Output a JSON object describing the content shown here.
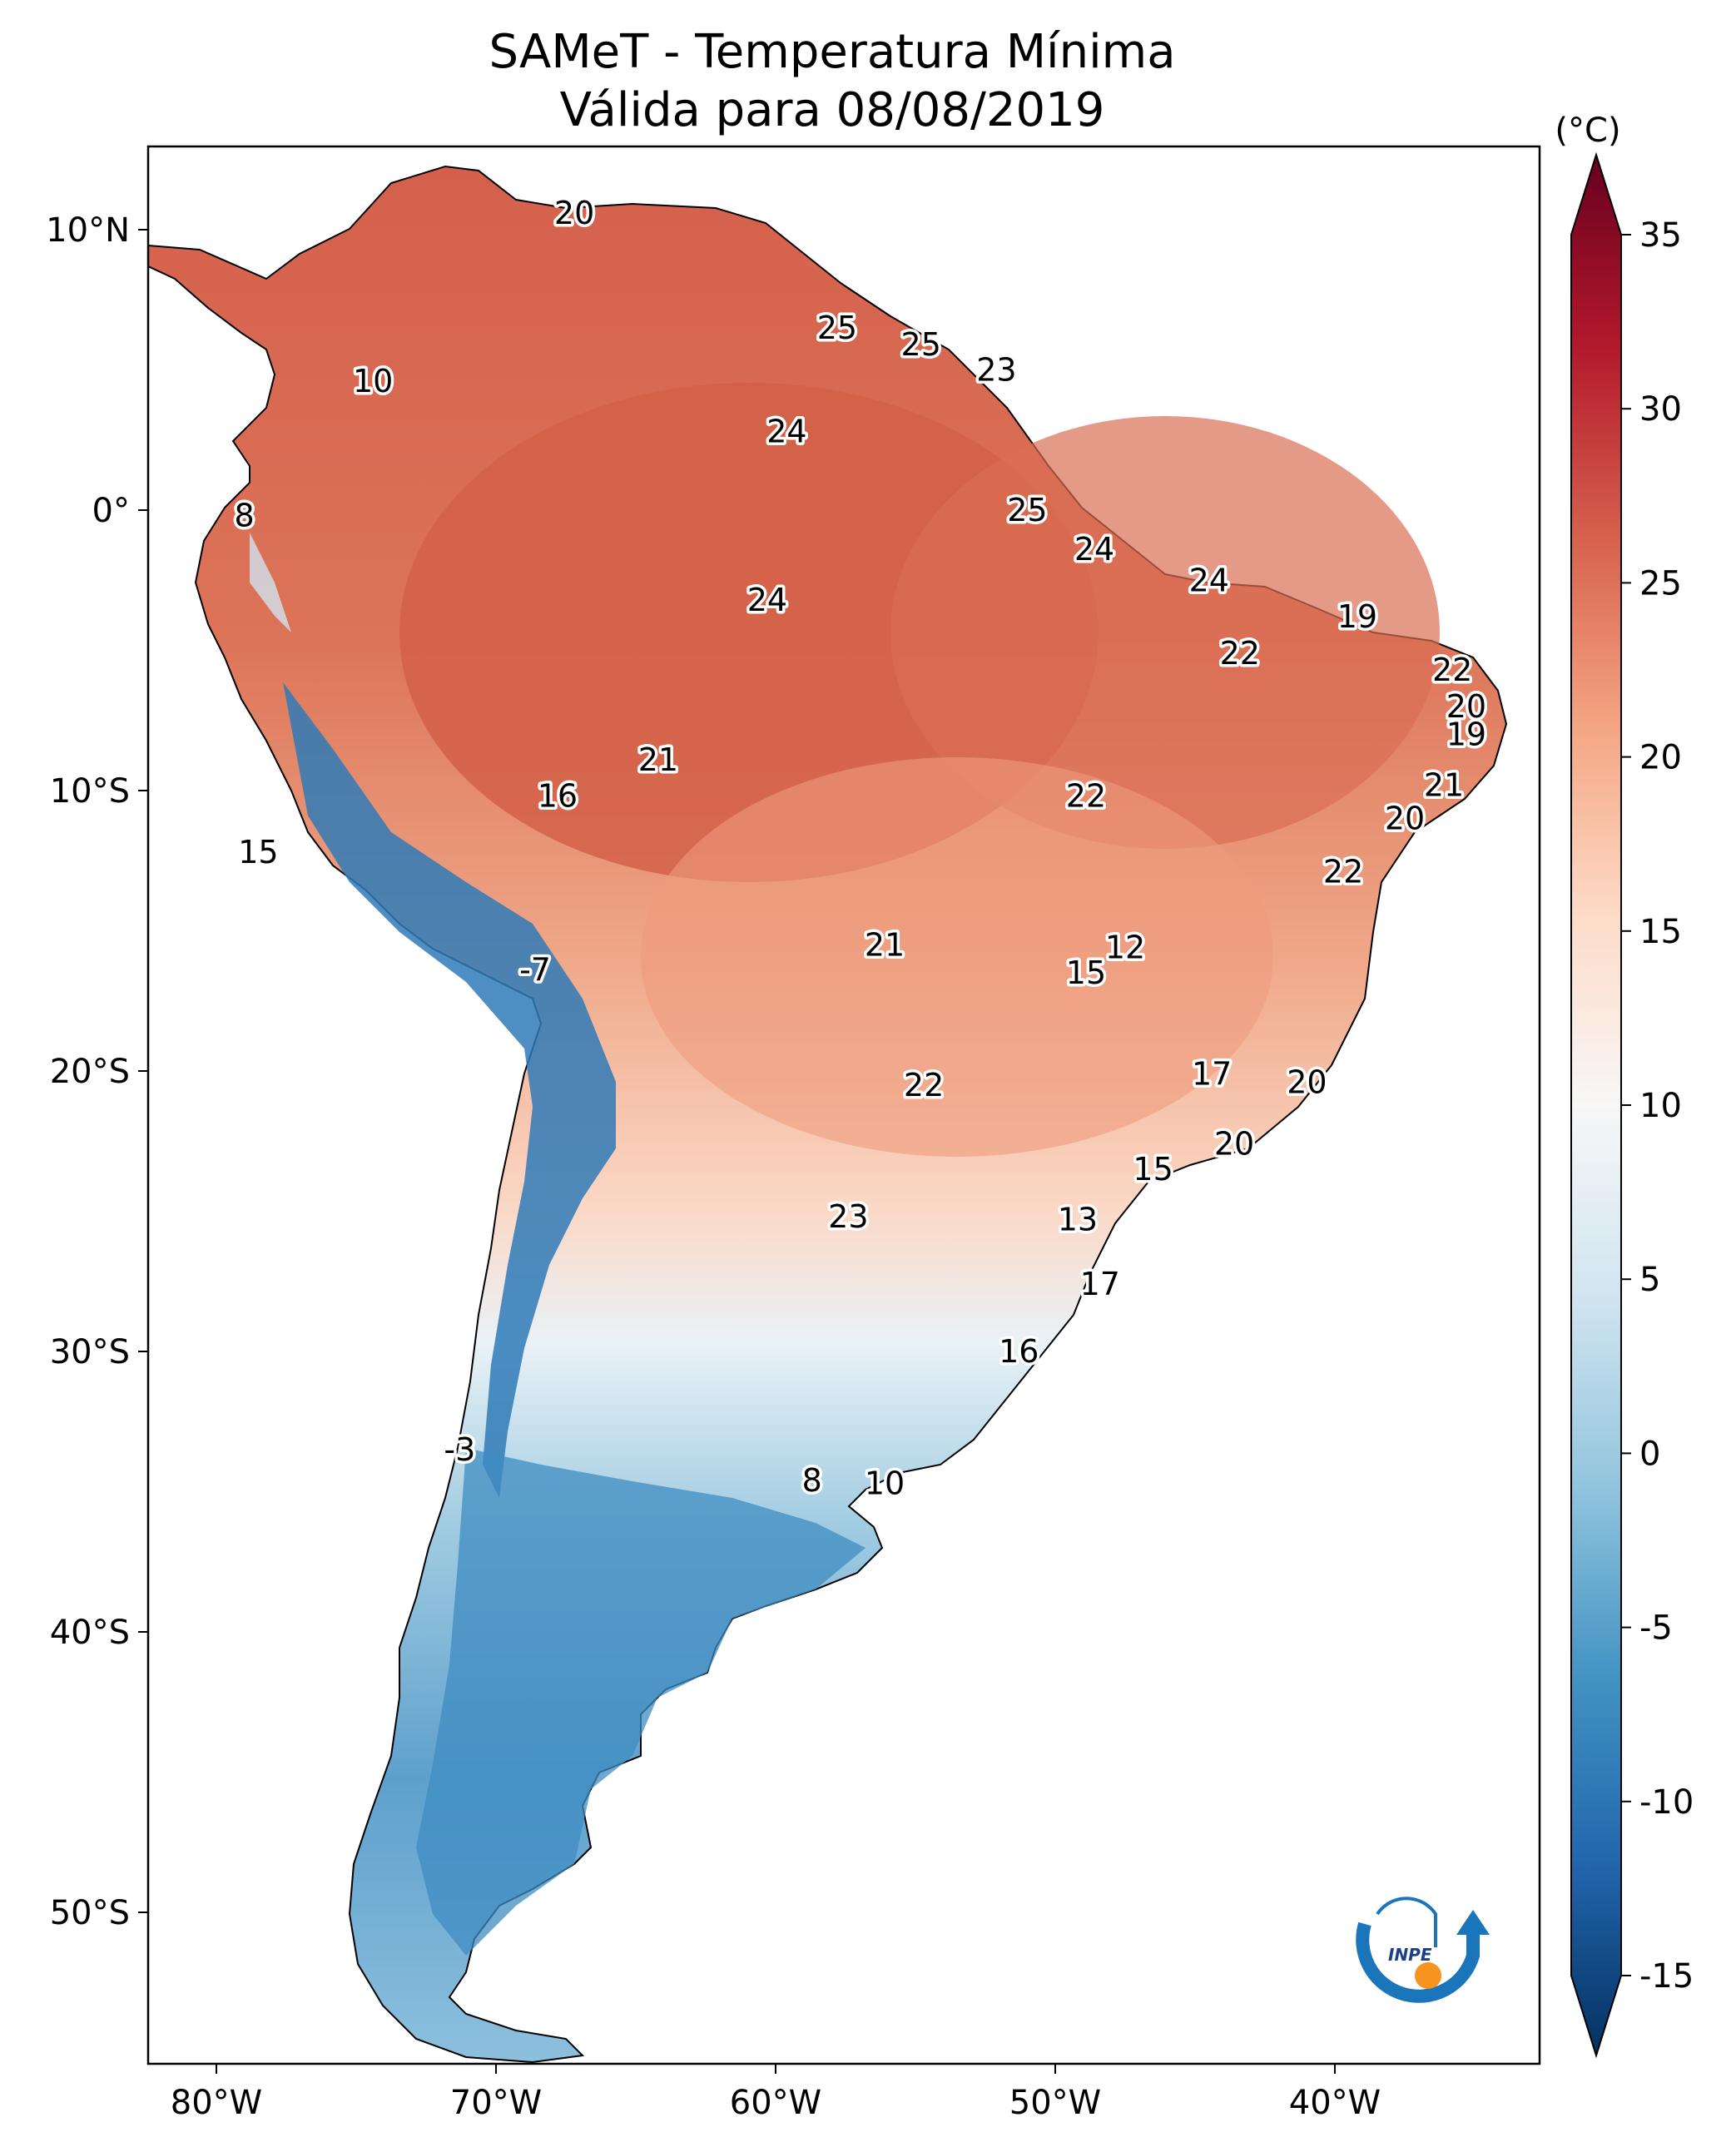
{
  "title": {
    "line1": "SAMeT - Temperatura Mínima",
    "line2": "Válida para 08/08/2019"
  },
  "map": {
    "lon_ticks": [
      "80°W",
      "70°W",
      "60°W",
      "50°W",
      "40°W"
    ],
    "lat_ticks": [
      "10°N",
      "0°",
      "10°S",
      "20°S",
      "30°S",
      "40°S",
      "50°S"
    ],
    "contour_labels": [
      {
        "text": "20",
        "lon": -67.2,
        "lat": 10.6
      },
      {
        "text": "25",
        "lon": -57.8,
        "lat": 6.5
      },
      {
        "text": "25",
        "lon": -54.8,
        "lat": 5.9
      },
      {
        "text": "23",
        "lon": -52.1,
        "lat": 5.0
      },
      {
        "text": "10",
        "lon": -74.4,
        "lat": 4.6
      },
      {
        "text": "24",
        "lon": -59.6,
        "lat": 2.8
      },
      {
        "text": "8",
        "lon": -79.0,
        "lat": -0.2
      },
      {
        "text": "25",
        "lon": -51.0,
        "lat": 0.0
      },
      {
        "text": "24",
        "lon": -48.6,
        "lat": -1.4
      },
      {
        "text": "24",
        "lon": -44.5,
        "lat": -2.5
      },
      {
        "text": "24",
        "lon": -60.3,
        "lat": -3.2
      },
      {
        "text": "19",
        "lon": -39.2,
        "lat": -3.8
      },
      {
        "text": "22",
        "lon": -43.4,
        "lat": -5.1
      },
      {
        "text": "22",
        "lon": -35.8,
        "lat": -5.7
      },
      {
        "text": "20",
        "lon": -35.3,
        "lat": -7.0
      },
      {
        "text": "19",
        "lon": -35.3,
        "lat": -8.0
      },
      {
        "text": "21",
        "lon": -64.2,
        "lat": -8.9
      },
      {
        "text": "16",
        "lon": -67.8,
        "lat": -10.2
      },
      {
        "text": "22",
        "lon": -48.9,
        "lat": -10.2
      },
      {
        "text": "21",
        "lon": -36.1,
        "lat": -9.8
      },
      {
        "text": "20",
        "lon": -37.5,
        "lat": -11.0
      },
      {
        "text": "15",
        "lon": -78.5,
        "lat": -12.2
      },
      {
        "text": "22",
        "lon": -39.7,
        "lat": -12.9
      },
      {
        "text": "21",
        "lon": -56.1,
        "lat": -15.5
      },
      {
        "text": "12",
        "lon": -47.5,
        "lat": -15.6
      },
      {
        "text": "15",
        "lon": -48.9,
        "lat": -16.5
      },
      {
        "text": "-7",
        "lon": -68.6,
        "lat": -16.4
      },
      {
        "text": "17",
        "lon": -44.4,
        "lat": -20.1
      },
      {
        "text": "20",
        "lon": -41.0,
        "lat": -20.4
      },
      {
        "text": "22",
        "lon": -54.7,
        "lat": -20.5
      },
      {
        "text": "20",
        "lon": -43.6,
        "lat": -22.6
      },
      {
        "text": "15",
        "lon": -46.5,
        "lat": -23.5
      },
      {
        "text": "23",
        "lon": -57.4,
        "lat": -25.2
      },
      {
        "text": "13",
        "lon": -49.2,
        "lat": -25.3
      },
      {
        "text": "17",
        "lon": -48.4,
        "lat": -27.6
      },
      {
        "text": "16",
        "lon": -51.3,
        "lat": -30.0
      },
      {
        "text": "-3",
        "lon": -71.3,
        "lat": -33.5
      },
      {
        "text": "8",
        "lon": -58.7,
        "lat": -34.6
      },
      {
        "text": "10",
        "lon": -56.1,
        "lat": -34.7
      }
    ]
  },
  "colorbar": {
    "unit_label": "(°C)",
    "ticks": [
      "35",
      "30",
      "25",
      "20",
      "15",
      "10",
      "5",
      "0",
      "-5",
      "-10",
      "-15"
    ],
    "tick_values": [
      35,
      30,
      25,
      20,
      15,
      10,
      5,
      0,
      -5,
      -10,
      -15
    ],
    "range": [
      -15,
      35
    ],
    "palette": [
      "#053061",
      "#2166ac",
      "#4393c3",
      "#92c5de",
      "#d1e5f0",
      "#f7f7f7",
      "#fddbc7",
      "#f4a582",
      "#d6604d",
      "#b2182b",
      "#67001f"
    ]
  },
  "logo": {
    "text": "INPE",
    "colors": {
      "ring": "#1b75bb",
      "sun": "#f7931e"
    }
  }
}
